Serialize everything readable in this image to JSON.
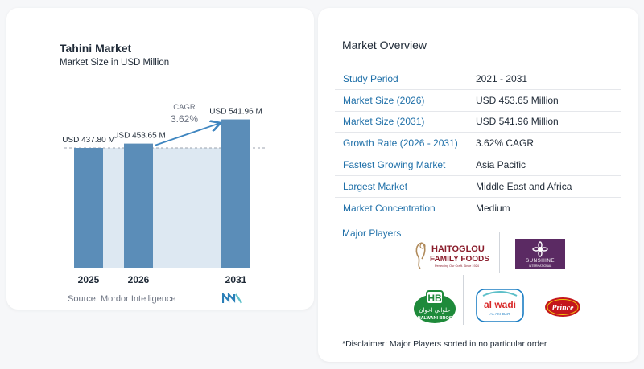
{
  "chart": {
    "title": "Tahini Market",
    "subtitle": "Market Size in USD Million",
    "source": "Source: Mordor Intelligence",
    "cagr_label": "CAGR",
    "cagr_value": "3.62%"
  },
  "chart_data": {
    "type": "bar",
    "categories": [
      "2025",
      "2026",
      "2031"
    ],
    "values": [
      437.8,
      453.65,
      541.96
    ],
    "data_labels": [
      "USD 437.80 M",
      "USD 453.65 M",
      "USD 541.96 M"
    ],
    "title": "Tahini Market",
    "subtitle": "Market Size in USD Million",
    "ylabel": "",
    "xlabel": "",
    "colors": {
      "bar": "#5b8db8",
      "shade": "#dde8f2",
      "arrow": "#3f86c0"
    }
  },
  "overview": {
    "title": "Market Overview",
    "rows": [
      {
        "label": "Study Period",
        "value": "2021 - 2031"
      },
      {
        "label": "Market Size (2026)",
        "value": "USD 453.65 Million"
      },
      {
        "label": "Market Size (2031)",
        "value": "USD 541.96 Million"
      },
      {
        "label": "Growth Rate (2026 - 2031)",
        "value": "3.62% CAGR"
      },
      {
        "label": "Fastest Growing Market",
        "value": "Asia Pacific"
      },
      {
        "label": "Largest Market",
        "value": "Middle East and Africa"
      },
      {
        "label": "Market Concentration",
        "value": "Medium"
      }
    ],
    "players_title": "Major Players",
    "disclaimer": "*Disclaimer: Major Players sorted in no particular order"
  },
  "players": {
    "haitoglou_name": "HAITOGLOU",
    "haitoglou_sub": "FAMILY FOODS",
    "haitoglou_tag": "Perfecting Our Craft. Since 1924",
    "sunshine_name": "SUNSHINE",
    "sunshine_sub": "INTERNATIONAL",
    "halwani_name": "HALWANI BROS",
    "halwani_arabic": "حلواني اخوان",
    "alwadi_name": "al wadi",
    "alwadi_sub": "AL AKHDAR",
    "prince_name": "Prince"
  }
}
